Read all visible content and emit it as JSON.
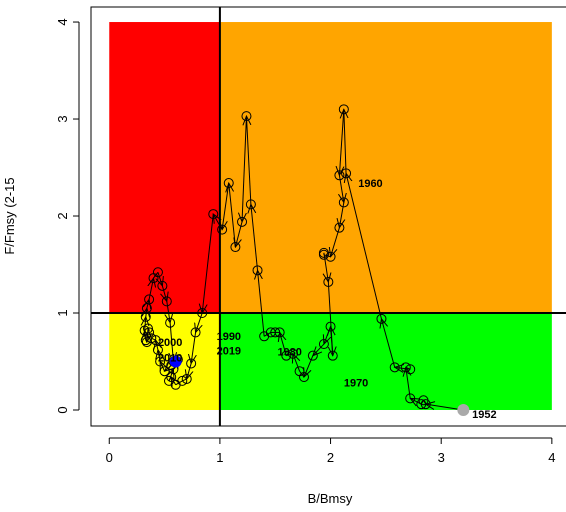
{
  "chart_data": {
    "type": "scatter",
    "title": "",
    "xlabel": "B/Bmsy",
    "ylabel": "F/Fmsy (2-15",
    "xlim": [
      0,
      4
    ],
    "ylim": [
      0,
      4
    ],
    "x_ticks": [
      "0",
      "1",
      "2",
      "3",
      "4"
    ],
    "y_ticks": [
      "0",
      "1",
      "2",
      "3",
      "4"
    ],
    "grid": false,
    "reference_lines": {
      "x": 1,
      "y": 1
    },
    "zones": [
      {
        "name": "red",
        "color": "#ff0000",
        "x": [
          0,
          1
        ],
        "y": [
          1,
          4
        ]
      },
      {
        "name": "orange",
        "color": "#ffa500",
        "x": [
          1,
          4
        ],
        "y": [
          1,
          4
        ]
      },
      {
        "name": "yellow",
        "color": "#ffff00",
        "x": [
          0,
          1
        ],
        "y": [
          0,
          1
        ]
      },
      {
        "name": "green",
        "color": "#00ff00",
        "x": [
          1,
          4
        ],
        "y": [
          0,
          1
        ]
      }
    ],
    "series": [
      {
        "x": [
          3.2,
          2.86,
          2.84,
          2.82,
          2.72,
          2.68,
          2.72,
          2.58,
          2.46,
          2.14,
          2.12,
          2.08,
          2.12,
          2.08,
          2.0,
          1.94,
          1.94,
          1.98,
          2.02,
          2.0,
          1.94,
          1.84,
          1.76,
          1.72,
          1.66,
          1.6,
          1.54,
          1.5,
          1.46,
          1.4,
          1.34,
          1.28,
          1.24,
          1.2,
          1.14,
          1.08,
          1.02,
          0.94,
          0.84,
          0.78,
          0.74,
          0.7,
          0.66,
          0.6,
          0.56,
          0.54,
          0.58,
          0.62,
          0.56,
          0.5,
          0.46,
          0.44,
          0.42,
          0.38,
          0.36,
          0.35,
          0.34,
          0.33,
          0.32,
          0.33,
          0.34,
          0.36,
          0.4,
          0.44,
          0.48,
          0.52,
          0.55,
          0.58
        ],
        "y": [
          0.0,
          0.06,
          0.1,
          0.06,
          0.12,
          0.44,
          0.42,
          0.44,
          0.94,
          2.44,
          3.1,
          2.42,
          2.14,
          1.88,
          1.58,
          1.6,
          1.62,
          1.32,
          0.56,
          0.86,
          0.68,
          0.56,
          0.34,
          0.4,
          0.58,
          0.56,
          0.8,
          0.8,
          0.8,
          0.76,
          1.44,
          2.12,
          3.03,
          1.94,
          1.68,
          2.34,
          1.86,
          2.02,
          1.0,
          0.8,
          0.48,
          0.32,
          0.3,
          0.26,
          0.34,
          0.3,
          0.42,
          0.52,
          0.46,
          0.4,
          0.5,
          0.62,
          0.72,
          0.74,
          0.8,
          0.84,
          0.7,
          0.72,
          0.82,
          0.96,
          1.05,
          1.14,
          1.36,
          1.42,
          1.28,
          1.12,
          0.9,
          0.5
        ],
        "color": "#000000"
      }
    ],
    "start_point": {
      "x": 3.2,
      "y": 0.0,
      "color": "#a9a9a9"
    },
    "end_point": {
      "x": 0.6,
      "y": 0.5,
      "color": "#0000ff"
    },
    "annotations": [
      {
        "text": "1952",
        "x": 3.28,
        "y": -0.08
      },
      {
        "text": "1960",
        "x": 2.25,
        "y": 2.3
      },
      {
        "text": "1970",
        "x": 2.12,
        "y": 0.24
      },
      {
        "text": "1980",
        "x": 1.52,
        "y": 0.56
      },
      {
        "text": "1990",
        "x": 0.97,
        "y": 0.72
      },
      {
        "text": "2000",
        "x": 0.44,
        "y": 0.66
      },
      {
        "text": "2010",
        "x": 0.44,
        "y": 0.5
      },
      {
        "text": "2019",
        "x": 0.97,
        "y": 0.57
      }
    ]
  }
}
